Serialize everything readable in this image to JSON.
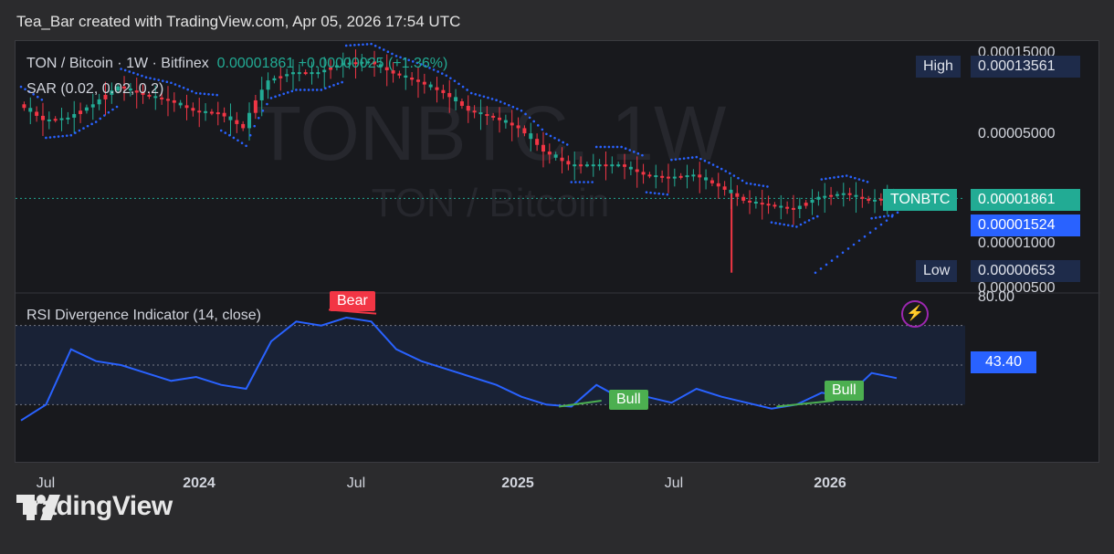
{
  "caption": "Tea_Bar created with TradingView.com, Apr 05, 2026 17:54 UTC",
  "legend": {
    "symbol": "TON / Bitcoin · 1W · Bitfinex",
    "price": "0.00001861",
    "change": "+0.00000025 (+1.36%)",
    "sar": "SAR (0.02, 0.02, 0.2)",
    "rsi": "RSI Divergence Indicator (14, close)"
  },
  "watermark": {
    "ticker": "TONBTC, 1W",
    "name": "TON / Bitcoin"
  },
  "price_axis": {
    "ticks": [
      "0.00015000",
      "0.00005000",
      "0.00001000",
      "0.00000500"
    ],
    "high_label": "High",
    "high_value": "0.00013561",
    "current_ticker": "TONBTC",
    "current_value": "0.00001861",
    "sar_value": "0.00001524",
    "low_label": "Low",
    "low_value": "0.00000653"
  },
  "rsi_axis": {
    "top": "80.00",
    "current": "43.40"
  },
  "divergence_labels": {
    "bear": "Bear",
    "bull1": "Bull",
    "bull2": "Bull"
  },
  "time_axis": [
    "Jul",
    "2024",
    "Jul",
    "2025",
    "Jul",
    "2026"
  ],
  "footer": {
    "brand": "TradingView"
  },
  "colors": {
    "up": "#22ab94",
    "down": "#f23645",
    "sar": "#2962ff",
    "rsi": "#2962ff",
    "bull": "#4caf50",
    "bear": "#f23645",
    "background": "#18191d"
  },
  "chart_data": [
    {
      "type": "line",
      "title": "TON / Bitcoin · 1W · Bitfinex",
      "x": [
        "2023-05",
        "2023-06",
        "2023-07",
        "2023-08",
        "2023-09",
        "2023-10",
        "2023-11",
        "2023-12",
        "2024-01",
        "2024-02",
        "2024-03",
        "2024-04",
        "2024-05",
        "2024-06",
        "2024-07",
        "2024-08",
        "2024-09",
        "2024-10",
        "2024-11",
        "2024-12",
        "2025-01",
        "2025-02",
        "2025-03",
        "2025-04",
        "2025-05",
        "2025-06",
        "2025-07",
        "2025-08",
        "2025-09",
        "2025-10",
        "2025-11",
        "2025-12",
        "2026-01",
        "2026-02",
        "2026-03",
        "2026-04"
      ],
      "series": [
        {
          "values": [
            7e-05,
            5.6e-05,
            5.8e-05,
            7e-05,
            9e-05,
            8e-05,
            7.4e-05,
            6.4e-05,
            6.2e-05,
            5e-05,
            9.8e-05,
            0.00011,
            0.00011,
            0.000125,
            0.000128,
            0.000108,
            9.6e-05,
            8.2e-05,
            6.4e-05,
            5.8e-05,
            5e-05,
            3.6e-05,
            3e-05,
            3e-05,
            3e-05,
            2.6e-05,
            2.5e-05,
            2.6e-05,
            2.2e-05,
            1.8e-05,
            1.7e-05,
            1.6e-05,
            1.9e-05,
            2e-05,
            1.8e-05,
            1.9e-05
          ]
        }
      ],
      "log_scale": true,
      "high": 0.00013561,
      "low": 6.53e-06,
      "last": 1.861e-05,
      "sar": 1.524e-05
    },
    {
      "type": "line",
      "title": "RSI Divergence Indicator (14, close)",
      "x": [
        "2023-05",
        "2023-06",
        "2023-07",
        "2023-08",
        "2023-09",
        "2023-10",
        "2023-11",
        "2023-12",
        "2024-01",
        "2024-02",
        "2024-03",
        "2024-04",
        "2024-05",
        "2024-06",
        "2024-07",
        "2024-08",
        "2024-09",
        "2024-10",
        "2024-11",
        "2024-12",
        "2025-01",
        "2025-02",
        "2025-03",
        "2025-04",
        "2025-05",
        "2025-06",
        "2025-07",
        "2025-08",
        "2025-09",
        "2025-10",
        "2025-11",
        "2025-12",
        "2026-01",
        "2026-02",
        "2026-03",
        "2026-04"
      ],
      "series": [
        {
          "values": [
            22,
            30,
            58,
            52,
            50,
            46,
            42,
            44,
            40,
            38,
            62,
            72,
            70,
            74,
            72,
            58,
            52,
            48,
            44,
            40,
            34,
            30,
            29,
            40,
            33,
            34,
            31,
            38,
            34,
            31,
            28,
            30,
            36,
            34,
            46,
            43.4
          ]
        }
      ],
      "ylim": [
        20,
        80
      ]
    }
  ]
}
